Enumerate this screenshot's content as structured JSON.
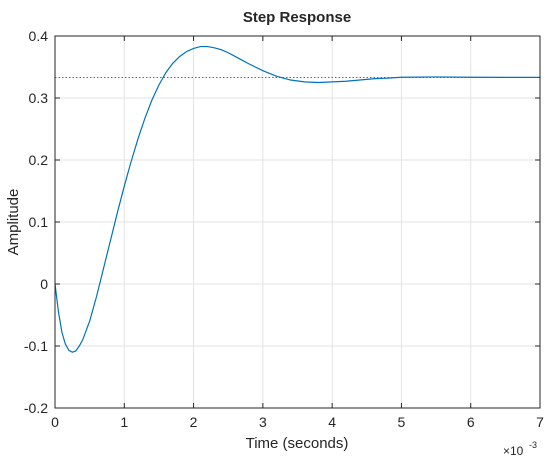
{
  "chart_data": {
    "type": "line",
    "title": "Step Response",
    "xlabel": "Time (seconds)",
    "ylabel": "Amplitude",
    "x_exponent_label": "×10",
    "x_exponent_power": "-3",
    "xlim": [
      0,
      7
    ],
    "ylim": [
      -0.2,
      0.4
    ],
    "x_ticks": [
      0,
      1,
      2,
      3,
      4,
      5,
      6,
      7
    ],
    "x_tick_labels": [
      "0",
      "1",
      "2",
      "3",
      "4",
      "5",
      "6",
      "7"
    ],
    "y_ticks": [
      -0.2,
      -0.1,
      0,
      0.1,
      0.2,
      0.3,
      0.4
    ],
    "y_tick_labels": [
      "-0.2",
      "-0.1",
      "0",
      "0.1",
      "0.2",
      "0.3",
      "0.4"
    ],
    "grid": true,
    "steady_state_value": 0.333,
    "series": [
      {
        "color": "#0072BD",
        "x": [
          0,
          0.05,
          0.1,
          0.15,
          0.2,
          0.25,
          0.3,
          0.35,
          0.4,
          0.5,
          0.6,
          0.7,
          0.8,
          0.9,
          1.0,
          1.1,
          1.2,
          1.3,
          1.4,
          1.5,
          1.6,
          1.7,
          1.8,
          1.9,
          2.0,
          2.1,
          2.2,
          2.3,
          2.4,
          2.5,
          2.6,
          2.7,
          2.8,
          3.0,
          3.2,
          3.4,
          3.6,
          3.8,
          4.0,
          4.2,
          4.4,
          4.6,
          4.8,
          5.0,
          5.5,
          6.0,
          6.5,
          7.0
        ],
        "y": [
          0,
          -0.045,
          -0.078,
          -0.097,
          -0.107,
          -0.11,
          -0.108,
          -0.1,
          -0.09,
          -0.06,
          -0.02,
          0.025,
          0.07,
          0.115,
          0.158,
          0.198,
          0.235,
          0.268,
          0.297,
          0.321,
          0.341,
          0.356,
          0.367,
          0.375,
          0.38,
          0.383,
          0.383,
          0.381,
          0.378,
          0.373,
          0.367,
          0.361,
          0.355,
          0.344,
          0.335,
          0.329,
          0.326,
          0.325,
          0.326,
          0.327,
          0.329,
          0.331,
          0.332,
          0.3335,
          0.334,
          0.3335,
          0.3333,
          0.3333
        ]
      }
    ]
  }
}
